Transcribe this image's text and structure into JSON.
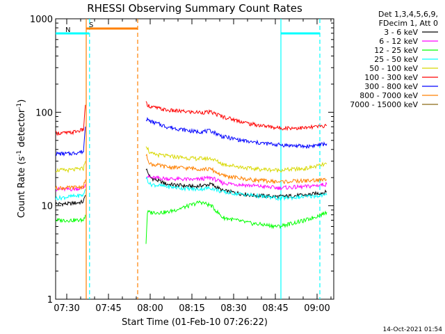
{
  "chart_data": {
    "type": "line",
    "title": "RHESSI Observing Summary Count Rates",
    "xlabel": "Start Time (01-Feb-10 07:26:22)",
    "ylabel_prefix": "Count Rate (s",
    "ylabel_mid": " detector",
    "ylabel_suffix": ")",
    "ylabel_exp": "-1",
    "y_scale": "log",
    "ylim": [
      1,
      1000
    ],
    "xlim_minutes_from_0726": [
      0,
      100
    ],
    "y_ticks": [
      {
        "value": 1,
        "label": "1"
      },
      {
        "value": 10,
        "label": "10"
      },
      {
        "value": 100,
        "label": "100"
      },
      {
        "value": 1000,
        "label": "1000"
      }
    ],
    "x_ticks": [
      {
        "minutes": 4,
        "label": "07:30"
      },
      {
        "minutes": 19,
        "label": "07:45"
      },
      {
        "minutes": 34,
        "label": "08:00"
      },
      {
        "minutes": 49,
        "label": "08:15"
      },
      {
        "minutes": 64,
        "label": "08:30"
      },
      {
        "minutes": 79,
        "label": "08:45"
      },
      {
        "minutes": 94,
        "label": "09:00"
      }
    ],
    "legend": {
      "placement": "right",
      "header": [
        "Det 1,3,4,5,6,9,",
        "FDecim 1, Att 0"
      ]
    },
    "series": [
      {
        "name": "3 - 6 keV",
        "color": "#000000",
        "segments": [
          [
            [
              0,
              10.5
            ],
            [
              5,
              10.5
            ],
            [
              10,
              11
            ],
            [
              10.7,
              13
            ]
          ],
          [
            [
              32.5,
              25
            ],
            [
              34,
              20
            ],
            [
              40,
              17
            ],
            [
              50,
              16
            ],
            [
              56,
              17
            ],
            [
              60,
              14.5
            ],
            [
              70,
              13
            ],
            [
              80,
              12.5
            ],
            [
              90,
              13
            ],
            [
              97.5,
              14
            ]
          ]
        ]
      },
      {
        "name": "6 - 12 keV",
        "color": "#ff00ff",
        "segments": [
          [
            [
              0,
              15
            ],
            [
              5,
              15
            ],
            [
              10,
              15.5
            ],
            [
              10.7,
              17
            ]
          ],
          [
            [
              32.5,
              21
            ],
            [
              34,
              20
            ],
            [
              40,
              19.5
            ],
            [
              50,
              19
            ],
            [
              56,
              20
            ],
            [
              60,
              17.5
            ],
            [
              70,
              16.5
            ],
            [
              80,
              15.5
            ],
            [
              90,
              16
            ],
            [
              97.5,
              17
            ]
          ]
        ]
      },
      {
        "name": "12 - 25 keV",
        "color": "#00ff00",
        "segments": [
          [
            [
              0,
              7
            ],
            [
              5,
              7
            ],
            [
              10,
              7
            ],
            [
              10.7,
              8
            ]
          ],
          [
            [
              32.5,
              4
            ],
            [
              33,
              8.5
            ],
            [
              40,
              8.5
            ],
            [
              48,
              10
            ],
            [
              52,
              11
            ],
            [
              56,
              10
            ],
            [
              60,
              7.5
            ],
            [
              70,
              6.5
            ],
            [
              80,
              6
            ],
            [
              90,
              7
            ],
            [
              97.5,
              8.5
            ]
          ]
        ]
      },
      {
        "name": "25 - 50 keV",
        "color": "#00ffff",
        "segments": [
          [
            [
              0,
              12
            ],
            [
              5,
              12.5
            ],
            [
              10,
              13
            ],
            [
              10.7,
              15
            ]
          ],
          [
            [
              32.5,
              20
            ],
            [
              34,
              17
            ],
            [
              40,
              16
            ],
            [
              50,
              15
            ],
            [
              56,
              15.5
            ],
            [
              60,
              14
            ],
            [
              70,
              13
            ],
            [
              80,
              12
            ],
            [
              90,
              12.5
            ],
            [
              97.5,
              13
            ]
          ]
        ]
      },
      {
        "name": "50 - 100 keV",
        "color": "#d8d800",
        "segments": [
          [
            [
              0,
              24
            ],
            [
              5,
              24
            ],
            [
              10,
              25
            ],
            [
              10.7,
              30
            ]
          ],
          [
            [
              32.5,
              45
            ],
            [
              34,
              36
            ],
            [
              40,
              34
            ],
            [
              50,
              32
            ],
            [
              56,
              32
            ],
            [
              60,
              28
            ],
            [
              70,
              25
            ],
            [
              80,
              24
            ],
            [
              90,
              25
            ],
            [
              97.5,
              28
            ]
          ]
        ]
      },
      {
        "name": "100 - 300 keV",
        "color": "#ff0000",
        "segments": [
          [
            [
              0,
              60
            ],
            [
              5,
              60
            ],
            [
              10,
              65
            ],
            [
              10.7,
              120
            ]
          ],
          [
            [
              32.5,
              125
            ],
            [
              34,
              115
            ],
            [
              40,
              105
            ],
            [
              50,
              100
            ],
            [
              56,
              100
            ],
            [
              60,
              90
            ],
            [
              70,
              75
            ],
            [
              80,
              68
            ],
            [
              90,
              68
            ],
            [
              97.5,
              72
            ]
          ]
        ]
      },
      {
        "name": "300 - 800 keV",
        "color": "#0000ff",
        "segments": [
          [
            [
              0,
              36
            ],
            [
              5,
              36
            ],
            [
              10,
              38
            ],
            [
              10.7,
              70
            ]
          ],
          [
            [
              32.5,
              85
            ],
            [
              34,
              80
            ],
            [
              40,
              70
            ],
            [
              50,
              62
            ],
            [
              56,
              63
            ],
            [
              60,
              55
            ],
            [
              70,
              48
            ],
            [
              80,
              45
            ],
            [
              90,
              43
            ],
            [
              97.5,
              46
            ]
          ]
        ]
      },
      {
        "name": "800 - 7000 keV",
        "color": "#ff8000",
        "segments": [
          [
            [
              0,
              15.5
            ],
            [
              5,
              15.5
            ],
            [
              10,
              16
            ],
            [
              10.7,
              19
            ]
          ],
          [
            [
              32.5,
              35
            ],
            [
              34,
              28
            ],
            [
              40,
              26
            ],
            [
              50,
              25
            ],
            [
              56,
              24.5
            ],
            [
              60,
              21
            ],
            [
              70,
              19
            ],
            [
              80,
              18
            ],
            [
              90,
              18.5
            ],
            [
              97.5,
              19
            ]
          ]
        ]
      },
      {
        "name": "7000 - 15000 keV",
        "color": "#8b6914",
        "segments": []
      }
    ],
    "flags": [
      {
        "label": "S",
        "color": "#ff8000",
        "start": 11,
        "end": 29.5
      },
      {
        "label": "N",
        "color": "#00ffff",
        "start": 0,
        "end": 12
      },
      {
        "label": "",
        "color": "#00ffff",
        "start": 81,
        "end": 95
      }
    ],
    "markers": [
      {
        "minutes": 11,
        "color": "#ff8000",
        "style": "solid"
      },
      {
        "minutes": 12.2,
        "color": "#00ffff",
        "style": "dashed"
      },
      {
        "minutes": 29.5,
        "color": "#ff8000",
        "style": "dashed"
      },
      {
        "minutes": 81,
        "color": "#00ffff",
        "style": "solid"
      },
      {
        "minutes": 95,
        "color": "#00ffff",
        "style": "dashed"
      }
    ],
    "footer_timestamp": "14-Oct-2021 01:54"
  }
}
